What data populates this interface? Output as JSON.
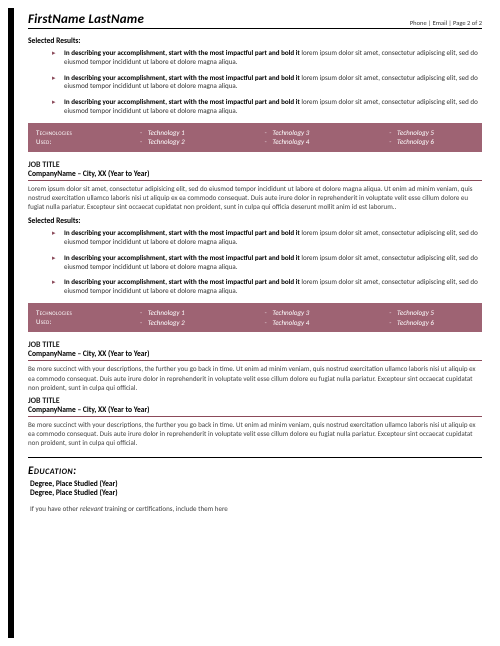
{
  "colors": {
    "accent": "#9e6373",
    "bullet": "#8b4a5a",
    "rule": "#000000",
    "text": "#333333"
  },
  "header": {
    "name": "FirstName LastName",
    "contact": "Phone | Email | Page 2 of 2"
  },
  "selected_results_label": "Selected Results:",
  "bullet_bold": "In describing your accomplishment, start with the most impactful part and bold it",
  "bullet_rest": " lorem ipsum dolor sit amet, consectetur adipiscing elit, sed do eiusmod tempor incididunt ut labore et dolore magna aliqua.",
  "tech_label_1": "Technologies",
  "tech_label_2": "Used:",
  "tech": {
    "c1a": "Technology 1",
    "c1b": "Technology 2",
    "c2a": "Technology 3",
    "c2b": "Technology 4",
    "c3a": "Technology 5",
    "c3b": "Technology 6"
  },
  "job2": {
    "title": "JOB TITLE",
    "company": "CompanyName – City, XX (Year to Year)",
    "body": "Lorem ipsum dolor sit amet, consectetur adipisicing elit, sed do eiusmod tempor incididunt ut labore et dolore magna aliqua. Ut enim ad minim veniam, quis nostrud exercitation ullamco laboris nisi ut aliquip ex ea commodo consequat. Duis aute irure dolor in reprehenderit in voluptate velit esse cillum dolore eu fugiat nulla pariatur. Excepteur sint occaecat cupidatat non proident, sunt in culpa qui officia deserunt mollit anim id est laborum.."
  },
  "job3": {
    "title": "JOB TITLE",
    "company": "CompanyName – City, XX (Year to Year)",
    "body": "Be more succinct with your descriptions, the further you go back in time. Ut enim ad minim veniam, quis nostrud exercitation ullamco laboris nisi ut aliquip ex ea commodo consequat. Duis aute irure dolor in reprehenderit in voluptate velit esse cillum dolore eu fugiat nulla pariatur. Excepteur sint occaecat cupidatat non proident, sunt in culpa qui official."
  },
  "job4": {
    "title": "JOB TITLE",
    "company": "CompanyName – City, XX (Year to Year)",
    "body": "Be more succinct with your descriptions, the further you go back in time. Ut enim ad minim veniam, quis nostrud exercitation ullamco laboris nisi ut aliquip ex ea commodo consequat. Duis aute irure dolor in reprehenderit in voluptate velit esse cillum dolore eu fugiat nulla pariatur. Excepteur sint occaecat cupidatat non proident, sunt in culpa qui official."
  },
  "education": {
    "heading": "Education:",
    "line1": "Degree, Place Studied (Year)",
    "line2": "Degree, Place Studied (Year)",
    "note_pre": "If you have other ",
    "note_ital": "relevant",
    "note_post": " training or certifications, include them here"
  }
}
